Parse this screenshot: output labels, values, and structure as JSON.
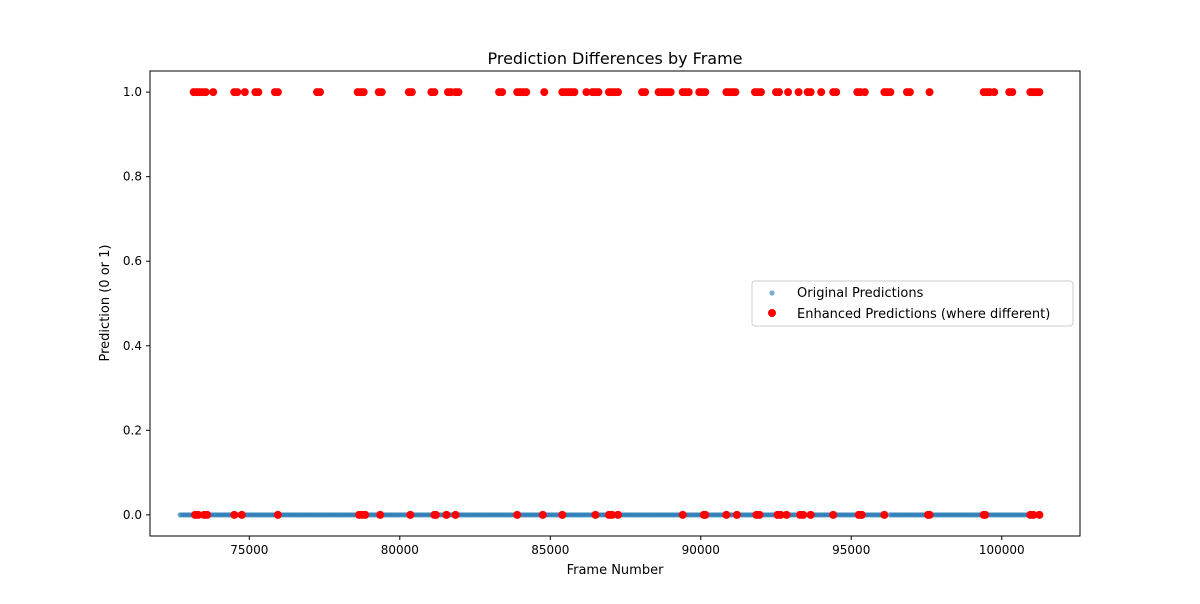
{
  "chart_data": {
    "type": "scatter",
    "title": "Prediction Differences by Frame",
    "xlabel": "Frame Number",
    "ylabel": "Prediction (0 or 1)",
    "xlim": [
      71700,
      102600
    ],
    "ylim": [
      -0.05,
      1.05
    ],
    "x_ticks": [
      75000,
      80000,
      85000,
      90000,
      95000,
      100000
    ],
    "x_tick_labels": [
      "75000",
      "80000",
      "85000",
      "90000",
      "95000",
      "100000"
    ],
    "y_ticks": [
      0.0,
      0.2,
      0.4,
      0.6,
      0.8,
      1.0
    ],
    "y_tick_labels": [
      "0.0",
      "0.2",
      "0.4",
      "0.6",
      "0.8",
      "1.0"
    ],
    "grid": false,
    "legend_position": "center-right",
    "series": [
      {
        "name": "Original Predictions",
        "color": "#1f77b4",
        "alpha": 0.6,
        "marker": "small-circle",
        "ranges_at_zero": [
          [
            72700,
            93180
          ],
          [
            93450,
            96080
          ],
          [
            96280,
            101300
          ]
        ],
        "points_at_one": [
          93300,
          93620,
          96200
        ]
      },
      {
        "name": "Enhanced Predictions (where different)",
        "color": "#ff0000",
        "marker": "circle",
        "points_at_one": [
          73150,
          73250,
          73350,
          73450,
          73550,
          73800,
          74500,
          74600,
          74850,
          75200,
          75300,
          75850,
          75950,
          77250,
          77350,
          78600,
          78700,
          78800,
          79300,
          79400,
          80300,
          80400,
          81050,
          81150,
          81600,
          81700,
          81850,
          81950,
          83300,
          83400,
          83900,
          84000,
          84100,
          84200,
          84800,
          85400,
          85500,
          85600,
          85700,
          85800,
          86200,
          86400,
          86500,
          86600,
          86950,
          87050,
          87150,
          87250,
          88050,
          88150,
          88600,
          88700,
          88800,
          88900,
          89000,
          89400,
          89500,
          89600,
          89950,
          90050,
          90150,
          90850,
          90950,
          91050,
          91150,
          91800,
          91900,
          92000,
          92500,
          92600,
          92900,
          93250,
          93550,
          93650,
          94000,
          94400,
          94500,
          95200,
          95300,
          95450,
          96100,
          96200,
          96300,
          96850,
          96950,
          97600,
          99400,
          99500,
          99600,
          99750,
          100250,
          100350,
          100950,
          101050,
          101150,
          101250
        ],
        "points_at_zero": [
          73200,
          73300,
          73500,
          73600,
          74500,
          74750,
          75950,
          78650,
          78750,
          78850,
          79350,
          80350,
          81150,
          81200,
          81550,
          81850,
          83900,
          84750,
          85400,
          86500,
          86950,
          87050,
          87250,
          89400,
          90100,
          90150,
          90850,
          91200,
          91850,
          91950,
          92550,
          92650,
          92850,
          93300,
          93400,
          93650,
          94400,
          95250,
          95350,
          96100,
          97550,
          97600,
          99400,
          99450,
          100950,
          101050,
          101250
        ]
      }
    ]
  }
}
